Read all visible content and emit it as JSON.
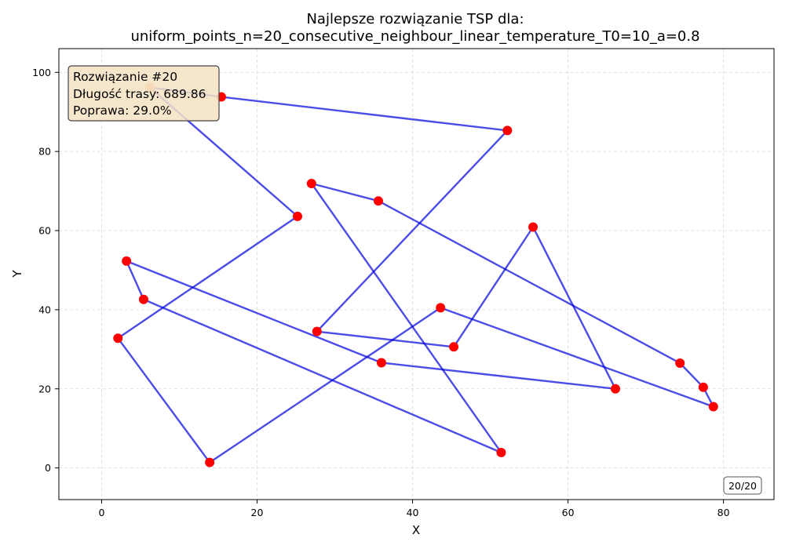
{
  "chart_data": {
    "type": "line",
    "title_line1": "Najlepsze rozwiązanie TSP dla:",
    "title_line2": "uniform_points_n=20_consecutive_neighbour_linear_temperature_T0=10_a=0.8",
    "xlabel": "X",
    "ylabel": "Y",
    "xlim": [
      -5.5,
      86.5
    ],
    "ylim": [
      -8,
      106
    ],
    "xticks": [
      0,
      20,
      40,
      60,
      80
    ],
    "yticks": [
      0,
      20,
      40,
      60,
      80,
      100
    ],
    "grid": true,
    "route": [
      {
        "x": 6.2,
        "y": 96.2
      },
      {
        "x": 25.2,
        "y": 63.6
      },
      {
        "x": 2.1,
        "y": 32.8
      },
      {
        "x": 13.9,
        "y": 1.4
      },
      {
        "x": 43.6,
        "y": 40.5
      },
      {
        "x": 78.7,
        "y": 15.5
      },
      {
        "x": 77.4,
        "y": 20.4
      },
      {
        "x": 74.4,
        "y": 26.5
      },
      {
        "x": 35.6,
        "y": 67.5
      },
      {
        "x": 27.0,
        "y": 71.9
      },
      {
        "x": 51.4,
        "y": 3.9
      },
      {
        "x": 5.4,
        "y": 42.6
      },
      {
        "x": 3.2,
        "y": 52.3
      },
      {
        "x": 36.0,
        "y": 26.6
      },
      {
        "x": 66.1,
        "y": 20.0
      },
      {
        "x": 55.5,
        "y": 60.9
      },
      {
        "x": 45.3,
        "y": 30.6
      },
      {
        "x": 27.7,
        "y": 34.5
      },
      {
        "x": 52.2,
        "y": 85.3
      },
      {
        "x": 15.4,
        "y": 93.8
      },
      {
        "x": 6.2,
        "y": 96.2
      }
    ],
    "colors": {
      "route": "#0000dd",
      "point": "#ff0000",
      "start_point": "#f5a07a",
      "info_box_fill": "#f5e3c3"
    }
  },
  "info_box": {
    "line1": "Rozwiązanie #20",
    "line2": "Długość trasy: 689.86",
    "line3": "Poprawa: 29.0%"
  },
  "counter": "20/20"
}
